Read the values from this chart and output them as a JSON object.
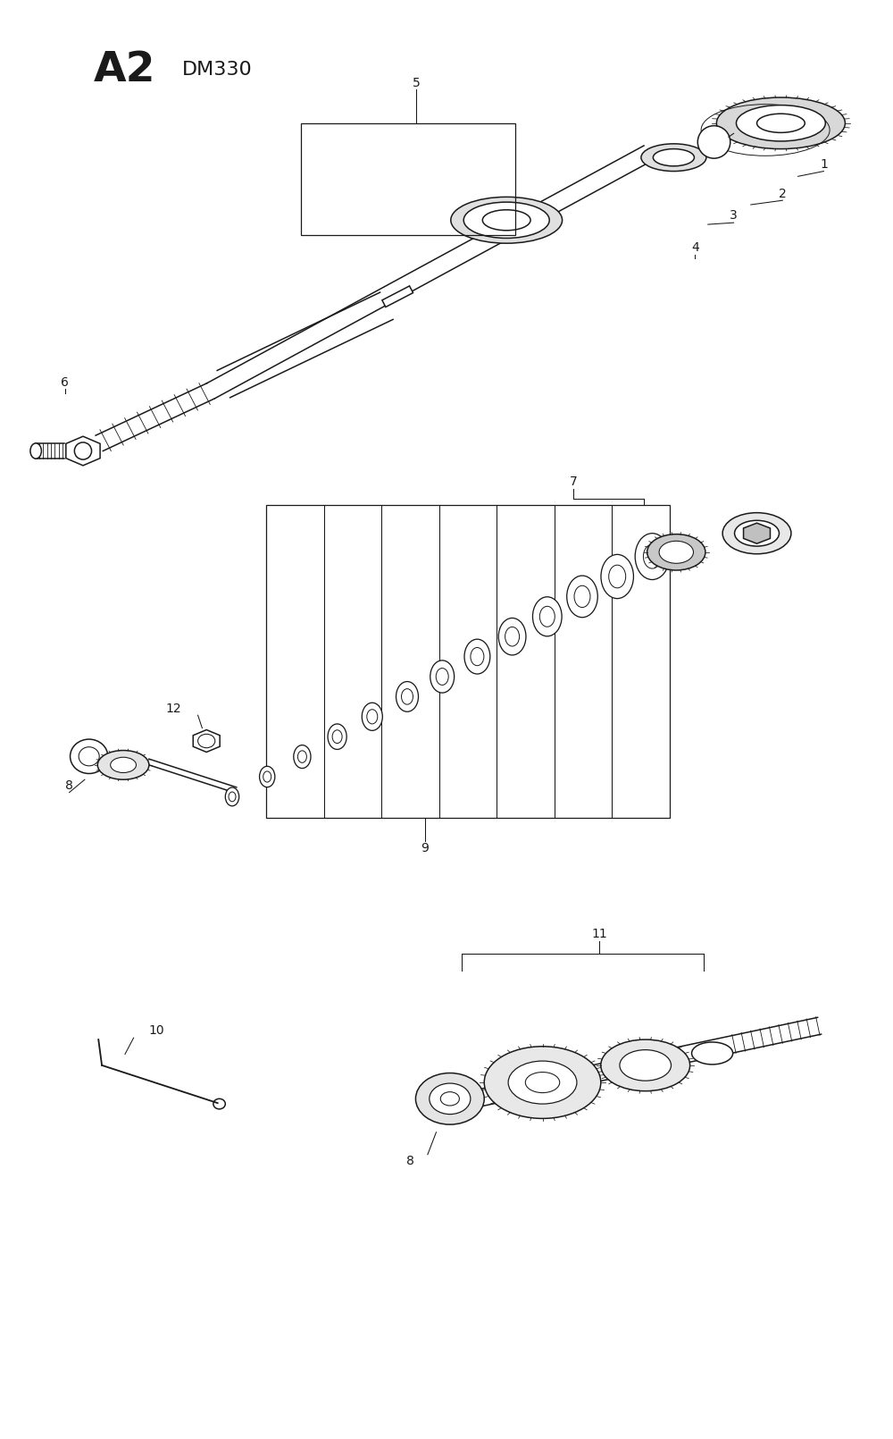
{
  "bg_color": "#ffffff",
  "line_color": "#1a1a1a",
  "figsize": [
    10.0,
    16.1
  ],
  "dpi": 100,
  "title": "A2",
  "subtitle": "DM330",
  "lw_base": 1.1
}
